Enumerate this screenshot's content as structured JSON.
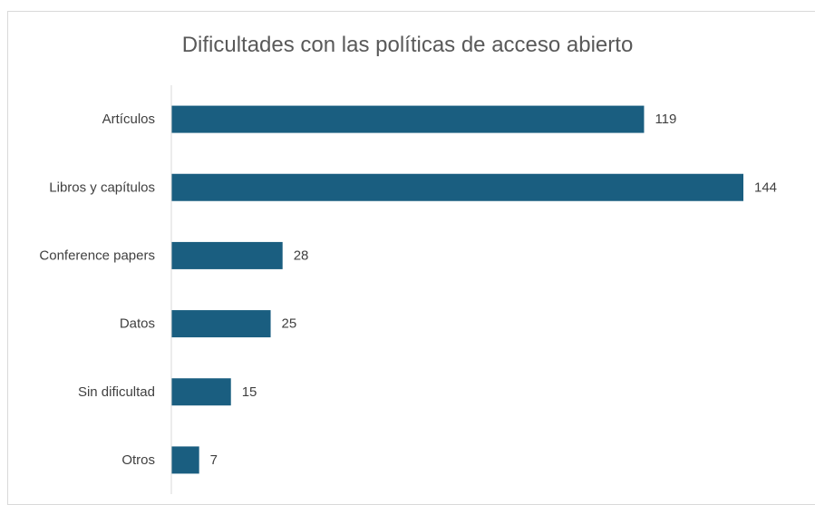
{
  "chart_data": {
    "type": "bar",
    "orientation": "horizontal",
    "title": "Dificultades con las políticas de acceso abierto",
    "categories": [
      "Artículos",
      "Libros y capítulos",
      "Conference papers",
      "Datos",
      "Sin dificultad",
      "Otros"
    ],
    "values": [
      119,
      144,
      28,
      25,
      15,
      7
    ],
    "xlabel": "",
    "ylabel": "",
    "xlim": [
      0,
      150
    ],
    "grid": false,
    "legend": "none",
    "bar_color": "#1a5e80",
    "data_labels": true
  }
}
